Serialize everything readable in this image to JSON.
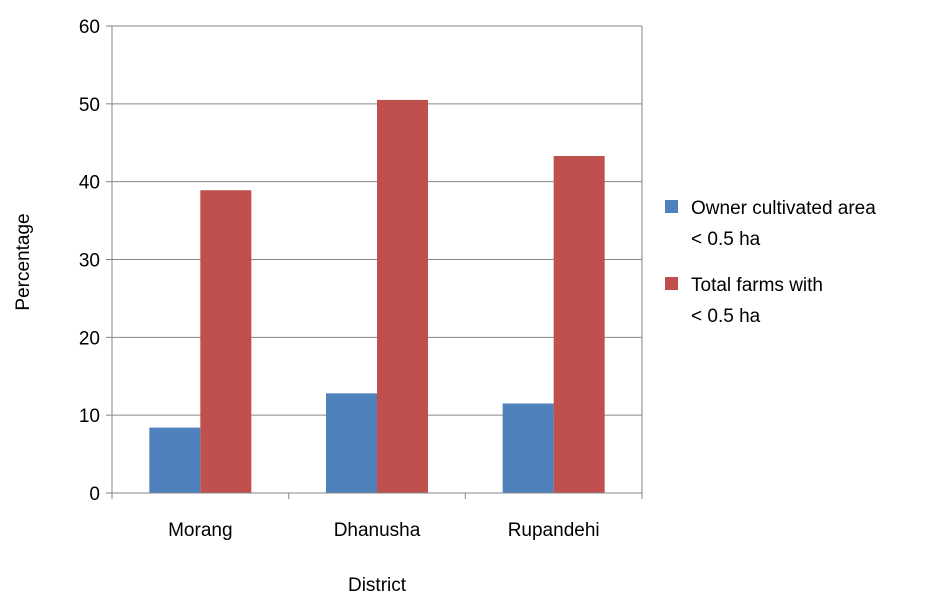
{
  "chart_data": {
    "type": "bar",
    "title": "",
    "xlabel": "District",
    "ylabel": "Percentage",
    "categories": [
      "Morang",
      "Dhanusha",
      "Rupandehi"
    ],
    "ylim": [
      0,
      60
    ],
    "yticks": [
      0,
      10,
      20,
      30,
      40,
      50,
      60
    ],
    "grid": true,
    "legend_position": "right",
    "series": [
      {
        "name": "Owner cultivated area < 0.5 ha",
        "legend_lines": [
          "Owner cultivated area",
          "< 0.5 ha"
        ],
        "color": "#4F81BD",
        "values": [
          8.4,
          12.8,
          11.5
        ]
      },
      {
        "name": "Total farms with < 0.5 ha",
        "legend_lines": [
          "Total farms with",
          "< 0.5 ha"
        ],
        "color": "#C0504D",
        "values": [
          38.9,
          50.5,
          43.3
        ]
      }
    ]
  }
}
